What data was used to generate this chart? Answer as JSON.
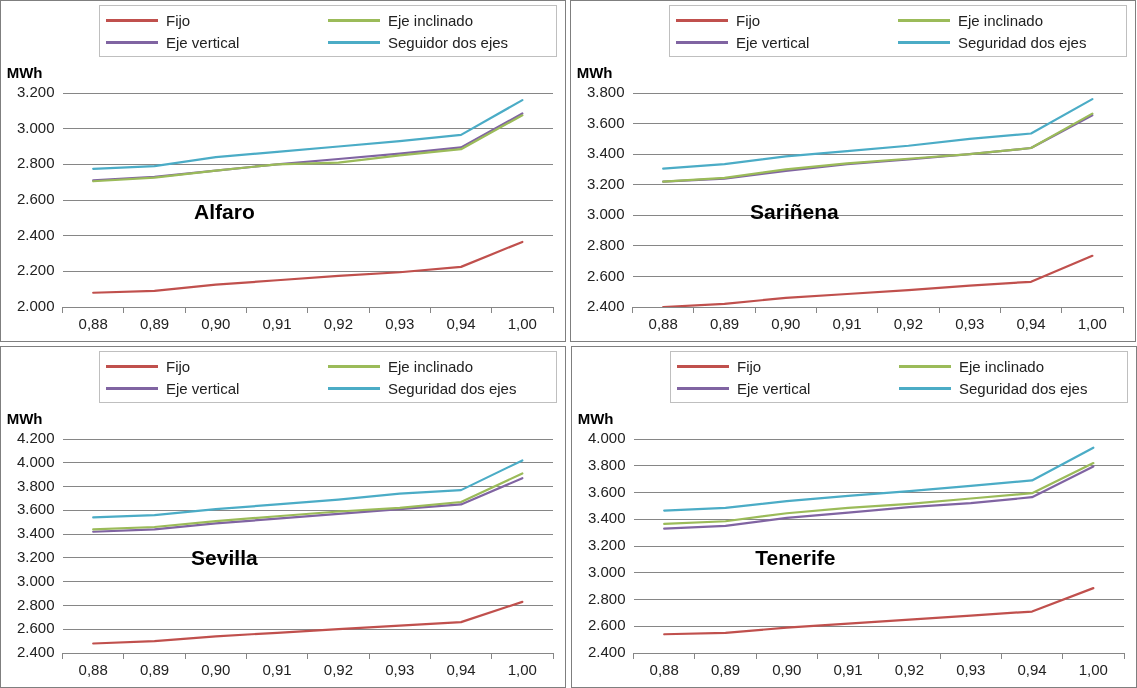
{
  "chart_data": [
    {
      "type": "line",
      "title": null,
      "ylabel": "MWh",
      "annotations": [
        "Alfaro"
      ],
      "categories": [
        "0,88",
        "0,89",
        "0,90",
        "0,91",
        "0,92",
        "0,93",
        "0,94",
        "1,00"
      ],
      "series": [
        {
          "name": "Fijo",
          "color": "#c0504d",
          "values": [
            2080,
            2090,
            2125,
            2150,
            2175,
            2195,
            2225,
            2365
          ]
        },
        {
          "name": "Eje inclinado",
          "color": "#9bbb59",
          "values": [
            2705,
            2725,
            2765,
            2800,
            2810,
            2850,
            2885,
            3075
          ]
        },
        {
          "name": "Eje vertical",
          "color": "#8064a2",
          "values": [
            2710,
            2730,
            2765,
            2800,
            2830,
            2860,
            2895,
            3085
          ]
        },
        {
          "name": "Seguidor dos ejes",
          "color": "#4bacc6",
          "values": [
            2775,
            2790,
            2840,
            2870,
            2900,
            2930,
            2965,
            3160
          ]
        }
      ],
      "ylim": [
        2000,
        3200
      ],
      "yticks": [
        {
          "value": 2000,
          "label": "2.000"
        },
        {
          "value": 2200,
          "label": "2.200"
        },
        {
          "value": 2400,
          "label": "2.400"
        },
        {
          "value": 2600,
          "label": "2.600"
        },
        {
          "value": 2800,
          "label": "2.800"
        },
        {
          "value": 3000,
          "label": "3.000"
        },
        {
          "value": 3200,
          "label": "3.200"
        }
      ],
      "grid": "y",
      "legend": "top",
      "marker": "none",
      "line_style": "solid"
    },
    {
      "type": "line",
      "ylabel": "MWh",
      "annotations": [
        "Sariñena"
      ],
      "categories": [
        "0,88",
        "0,89",
        "0,90",
        "0,91",
        "0,92",
        "0,93",
        "0,94",
        "1,00"
      ],
      "series": [
        {
          "name": "Fijo",
          "color": "#c0504d",
          "values": [
            2400,
            2420,
            2460,
            2485,
            2510,
            2540,
            2565,
            2735
          ]
        },
        {
          "name": "Eje inclinado",
          "color": "#9bbb59",
          "values": [
            3220,
            3245,
            3300,
            3340,
            3370,
            3400,
            3440,
            3665
          ]
        },
        {
          "name": "Eje vertical",
          "color": "#8064a2",
          "values": [
            3220,
            3240,
            3290,
            3335,
            3365,
            3400,
            3440,
            3655
          ]
        },
        {
          "name": "Seguridad dos ejes",
          "color": "#4bacc6",
          "values": [
            3305,
            3335,
            3385,
            3420,
            3455,
            3500,
            3535,
            3760
          ]
        }
      ],
      "ylim": [
        2400,
        3800
      ],
      "yticks": [
        {
          "value": 2400,
          "label": "2.400"
        },
        {
          "value": 2600,
          "label": "2.600"
        },
        {
          "value": 2800,
          "label": "2.800"
        },
        {
          "value": 3000,
          "label": "3.000"
        },
        {
          "value": 3200,
          "label": "3.200"
        },
        {
          "value": 3400,
          "label": "3.400"
        },
        {
          "value": 3600,
          "label": "3.600"
        },
        {
          "value": 3800,
          "label": "3.800"
        }
      ],
      "grid": "y",
      "legend": "top",
      "marker": "none",
      "line_style": "solid"
    },
    {
      "type": "line",
      "ylabel": "MWh",
      "annotations": [
        "Sevilla"
      ],
      "categories": [
        "0,88",
        "0,89",
        "0,90",
        "0,91",
        "0,92",
        "0,93",
        "0,94",
        "1,00"
      ],
      "series": [
        {
          "name": "Fijo",
          "color": "#c0504d",
          "values": [
            2480,
            2500,
            2540,
            2570,
            2600,
            2630,
            2660,
            2830
          ]
        },
        {
          "name": "Eje inclinado",
          "color": "#9bbb59",
          "values": [
            3440,
            3460,
            3510,
            3550,
            3590,
            3620,
            3670,
            3910
          ]
        },
        {
          "name": "Eje vertical",
          "color": "#8064a2",
          "values": [
            3420,
            3440,
            3490,
            3530,
            3570,
            3610,
            3650,
            3870
          ]
        },
        {
          "name": "Seguridad dos ejes",
          "color": "#4bacc6",
          "values": [
            3540,
            3560,
            3610,
            3650,
            3690,
            3740,
            3770,
            4020
          ]
        }
      ],
      "ylim": [
        2400,
        4200
      ],
      "yticks": [
        {
          "value": 2400,
          "label": "2.400"
        },
        {
          "value": 2600,
          "label": "2.600"
        },
        {
          "value": 2800,
          "label": "2.800"
        },
        {
          "value": 3000,
          "label": "3.000"
        },
        {
          "value": 3200,
          "label": "3.200"
        },
        {
          "value": 3400,
          "label": "3.400"
        },
        {
          "value": 3600,
          "label": "3.600"
        },
        {
          "value": 3800,
          "label": "3.800"
        },
        {
          "value": 4000,
          "label": "4.000"
        },
        {
          "value": 4200,
          "label": "4.200"
        }
      ],
      "grid": "y",
      "legend": "top",
      "marker": "none",
      "line_style": "solid"
    },
    {
      "type": "line",
      "ylabel": "MWh",
      "annotations": [
        "Tenerife"
      ],
      "categories": [
        "0,88",
        "0,89",
        "0,90",
        "0,91",
        "0,92",
        "0,93",
        "0,94",
        "1,00"
      ],
      "series": [
        {
          "name": "Fijo",
          "color": "#c0504d",
          "values": [
            2540,
            2550,
            2590,
            2620,
            2650,
            2680,
            2710,
            2885
          ]
        },
        {
          "name": "Eje inclinado",
          "color": "#9bbb59",
          "values": [
            3365,
            3385,
            3445,
            3485,
            3515,
            3555,
            3595,
            3820
          ]
        },
        {
          "name": "Eje vertical",
          "color": "#8064a2",
          "values": [
            3330,
            3350,
            3410,
            3450,
            3490,
            3520,
            3565,
            3795
          ]
        },
        {
          "name": "Seguridad dos ejes",
          "color": "#4bacc6",
          "values": [
            3465,
            3485,
            3535,
            3575,
            3610,
            3650,
            3690,
            3935
          ]
        }
      ],
      "ylim": [
        2400,
        4000
      ],
      "yticks": [
        {
          "value": 2400,
          "label": "2.400"
        },
        {
          "value": 2600,
          "label": "2.600"
        },
        {
          "value": 2800,
          "label": "2.800"
        },
        {
          "value": 3000,
          "label": "3.000"
        },
        {
          "value": 3200,
          "label": "3.200"
        },
        {
          "value": 3400,
          "label": "3.400"
        },
        {
          "value": 3600,
          "label": "3.600"
        },
        {
          "value": 3800,
          "label": "3.800"
        },
        {
          "value": 4000,
          "label": "4.000"
        }
      ],
      "grid": "y",
      "legend": "top",
      "marker": "none",
      "line_style": "solid"
    }
  ]
}
